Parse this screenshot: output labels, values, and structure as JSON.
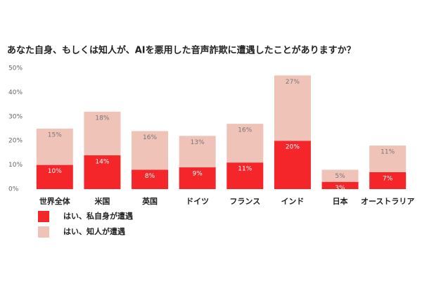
{
  "chart_data": {
    "type": "stacked_bar",
    "title": "あなた自身、もしくは知人が、AIを悪用した音声詐欺に遭遇したことがありますか？",
    "categories": [
      "世界全体",
      "米国",
      "英国",
      "ドイツ",
      "フランス",
      "インド",
      "日本",
      "オーストラリア"
    ],
    "series": [
      {
        "name": "はい、私自身が遭遇",
        "color": "#f5262a",
        "values": [
          10,
          14,
          8,
          9,
          11,
          20,
          3,
          7
        ],
        "value_labels": [
          "10%",
          "14%",
          "8%",
          "9%",
          "11%",
          "20%",
          "3%",
          "7%"
        ]
      },
      {
        "name": "はい、知人が遭遇",
        "color": "#efc3b8",
        "values": [
          15,
          18,
          16,
          13,
          16,
          27,
          5,
          11
        ],
        "value_labels": [
          "15%",
          "18%",
          "16%",
          "13%",
          "16%",
          "27%",
          "5%",
          "11%"
        ]
      }
    ],
    "ylim": [
      0,
      50
    ],
    "yticks": [
      {
        "value": 0,
        "label": "0%"
      },
      {
        "value": 10,
        "label": "10%"
      },
      {
        "value": 20,
        "label": "20%"
      },
      {
        "value": 30,
        "label": "30%"
      },
      {
        "value": 40,
        "label": "40%"
      },
      {
        "value": 50,
        "label": "50%"
      }
    ]
  }
}
